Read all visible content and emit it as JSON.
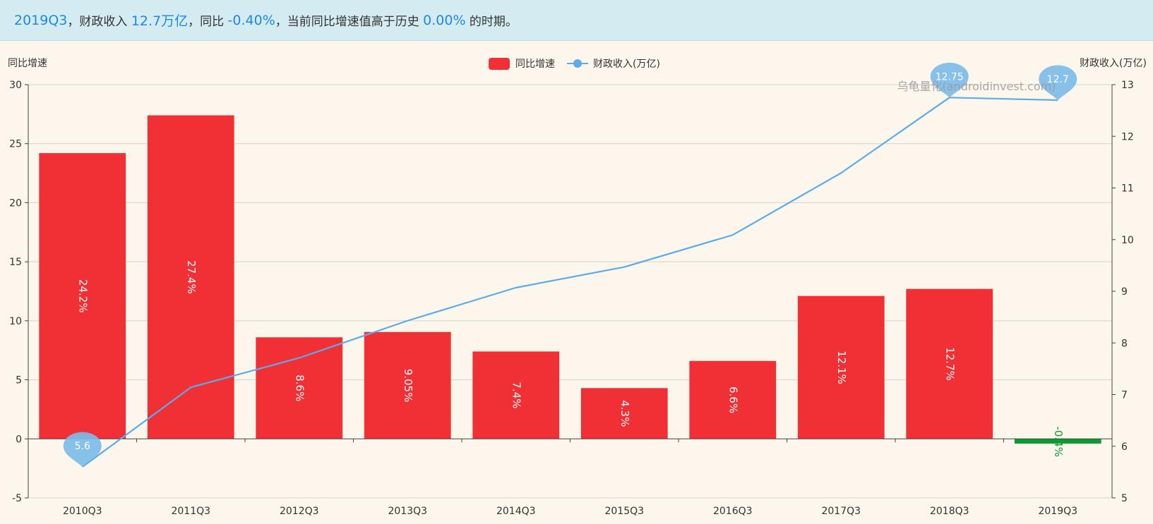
{
  "banner": {
    "period": "2019Q3",
    "sep1": "，",
    "revenue_label": "财政收入 ",
    "revenue_value": "12.7万亿",
    "sep2": "，",
    "yoy_label": "同比 ",
    "yoy_value": "-0.40%",
    "sep3": "，",
    "history_label": "当前同比增速值高于历史 ",
    "history_value": "0.00%",
    "history_suffix": " 的时期。"
  },
  "watermark": "乌龟量化(androidinvest.com)",
  "colors": {
    "bar_positive": "#f03034",
    "bar_negative": "#0d9a32",
    "line": "#5aacea",
    "pin": "#7dbce8",
    "grid": "#d2d2cf",
    "axis": "#444444"
  },
  "chart_data": {
    "type": "bar+line",
    "categories": [
      "2010Q3",
      "2011Q3",
      "2012Q3",
      "2013Q3",
      "2014Q3",
      "2015Q3",
      "2016Q3",
      "2017Q3",
      "2018Q3",
      "2019Q3"
    ],
    "series": [
      {
        "name": "同比增速",
        "type": "bar",
        "axis": "left",
        "values": [
          24.2,
          27.4,
          8.6,
          9.05,
          7.4,
          4.3,
          6.6,
          12.1,
          12.7,
          -0.4
        ],
        "labels": [
          "24.2%",
          "27.4%",
          "8.6%",
          "9.05%",
          "7.4%",
          "4.3%",
          "6.6%",
          "12.1%",
          "12.7%",
          "-0.4%"
        ]
      },
      {
        "name": "财政收入(万亿)",
        "type": "line",
        "axis": "right",
        "values": [
          5.6,
          7.14,
          7.71,
          8.43,
          9.07,
          9.47,
          10.09,
          11.29,
          12.75,
          12.7
        ]
      }
    ],
    "markers": [
      {
        "category": "2010Q3",
        "value": 5.6,
        "label": "5.6"
      },
      {
        "category": "2018Q3",
        "value": 12.75,
        "label": "12.75"
      },
      {
        "category": "2019Q3",
        "value": 12.7,
        "label": "12.7"
      }
    ],
    "ylabel_left": "同比增速",
    "ylabel_right": "财政收入(万亿)",
    "ylim_left": [
      -5,
      30
    ],
    "yticks_left": [
      -5,
      0,
      5,
      10,
      15,
      20,
      25,
      30
    ],
    "ylim_right": [
      5,
      13
    ],
    "yticks_right": [
      5,
      6,
      7,
      8,
      9,
      10,
      11,
      12,
      13
    ],
    "legend": [
      "同比增速",
      "财政收入(万亿)"
    ],
    "legend_position": "top-center",
    "grid": true
  }
}
